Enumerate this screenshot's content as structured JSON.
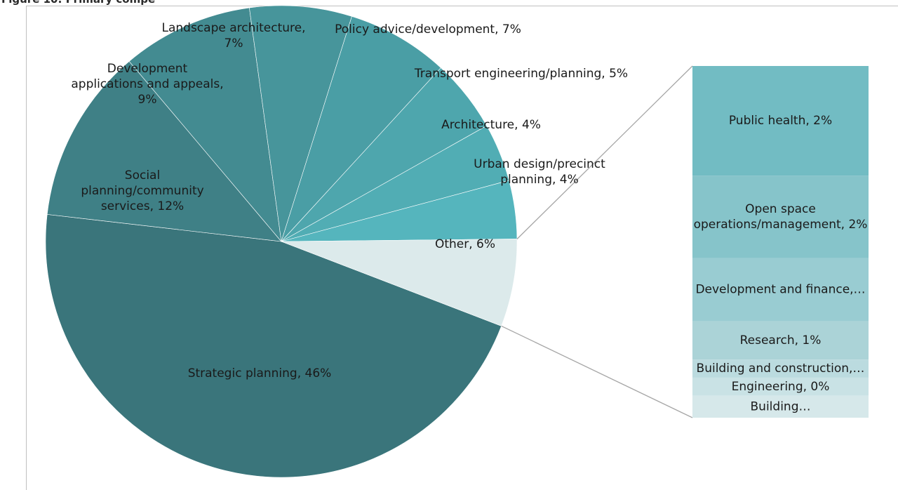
{
  "title": "Figure 10: Primary compe",
  "chart_data": {
    "type": "pie",
    "subtype": "pie-of-bar",
    "slices": [
      {
        "name": "Strategic planning",
        "label": "Strategic planning, 46%",
        "value": 46,
        "color": "#3a757b"
      },
      {
        "name": "Social planning/community services",
        "label": "Social planning/community services, 12%",
        "value": 12,
        "color": "#3f8086"
      },
      {
        "name": "Development applications and appeals",
        "label": "Development applications and appeals, 9%",
        "value": 9,
        "color": "#438b91"
      },
      {
        "name": "Landscape architecture",
        "label": "Landscape architecture, 7%",
        "value": 7,
        "color": "#47959b"
      },
      {
        "name": "Policy advice/development",
        "label": "Policy advice/development, 7%",
        "value": 7,
        "color": "#4a9ea5"
      },
      {
        "name": "Transport engineering/planning",
        "label": "Transport engineering/planning, 5%",
        "value": 5,
        "color": "#4ea6ad"
      },
      {
        "name": "Architecture",
        "label": "Architecture, 4%",
        "value": 4,
        "color": "#51adb4"
      },
      {
        "name": "Urban design/precinct planning",
        "label": "Urban design/precinct planning, 4%",
        "value": 4,
        "color": "#55b5bd"
      },
      {
        "name": "Other",
        "label": "Other, 6%",
        "value": 6,
        "color": "#dceaeb"
      }
    ],
    "other_breakdown": [
      {
        "name": "Public health",
        "label": "Public health, 2%",
        "value": 2.0,
        "color": "#72bcc3"
      },
      {
        "name": "Open space operations/management",
        "label": "Open space operations/management, 2%",
        "value": 1.5,
        "color": "#86c4ca"
      },
      {
        "name": "Development and finance",
        "label": "Development and finance,…",
        "value": 1.15,
        "color": "#99ccd2"
      },
      {
        "name": "Research",
        "label": "Research, 1%",
        "value": 0.7,
        "color": "#abd3d7"
      },
      {
        "name": "Building and construction",
        "label": "Building and construction,…",
        "value": 0.33,
        "color": "#bbdbdf"
      },
      {
        "name": "Engineering",
        "label": "Engineering, 0%",
        "value": 0.33,
        "color": "#c9e2e5"
      },
      {
        "name": "Building",
        "label": "Building…",
        "value": 0.4,
        "color": "#d6e8ea"
      }
    ]
  }
}
